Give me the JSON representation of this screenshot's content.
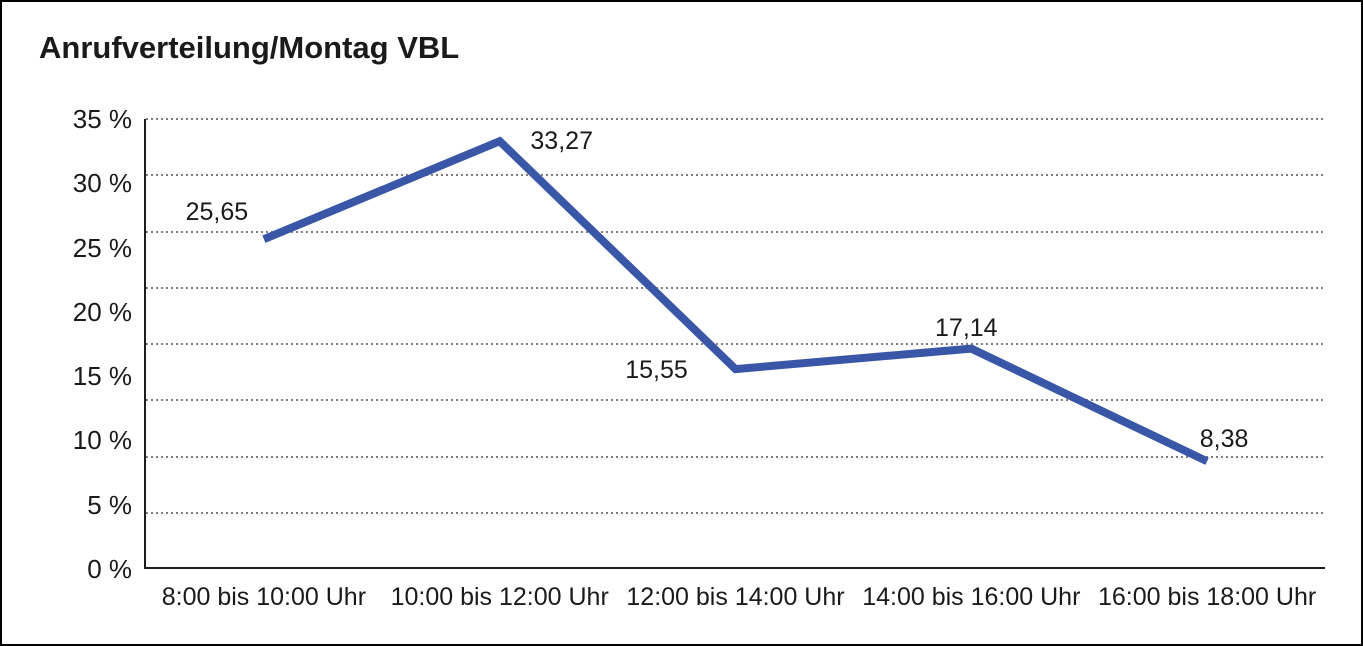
{
  "title": "Anrufverteilung/Montag VBL",
  "colors": {
    "line": "#3A57A7",
    "grid_dots": "#7d7d7d",
    "axis": "#1c1c1c",
    "text": "#1a1a1a",
    "background": "#ffffff",
    "frame_border": "#000000"
  },
  "y_axis": {
    "tick_labels": [
      "35 %",
      "30 %",
      "25 %",
      "20 %",
      "15 %",
      "10 %",
      "5 %",
      "0 %"
    ],
    "min": 0,
    "max": 35,
    "step": 5
  },
  "x_axis": {
    "categories": [
      "8:00 bis 10:00 Uhr",
      "10:00 bis 12:00 Uhr",
      "12:00 bis 14:00 Uhr",
      "14:00 bis 16:00 Uhr",
      "16:00 bis 18:00 Uhr"
    ]
  },
  "chart_data": {
    "type": "line",
    "title": "Anrufverteilung/Montag VBL",
    "categories": [
      "8:00 bis 10:00 Uhr",
      "10:00 bis 12:00 Uhr",
      "12:00 bis 14:00 Uhr",
      "14:00 bis 16:00 Uhr",
      "16:00 bis 18:00 Uhr"
    ],
    "values": [
      25.65,
      33.27,
      15.55,
      17.14,
      8.38
    ],
    "value_labels": [
      "25,65",
      "33,27",
      "15,55",
      "17,14",
      "8,38"
    ],
    "series_name": "",
    "xlabel": "",
    "ylabel": "",
    "ylim": [
      0,
      35
    ],
    "y_tick_step": 5,
    "grid": "horizontal-dotted",
    "legend": "none",
    "line_color": "#3A57A7",
    "line_width": 8
  }
}
